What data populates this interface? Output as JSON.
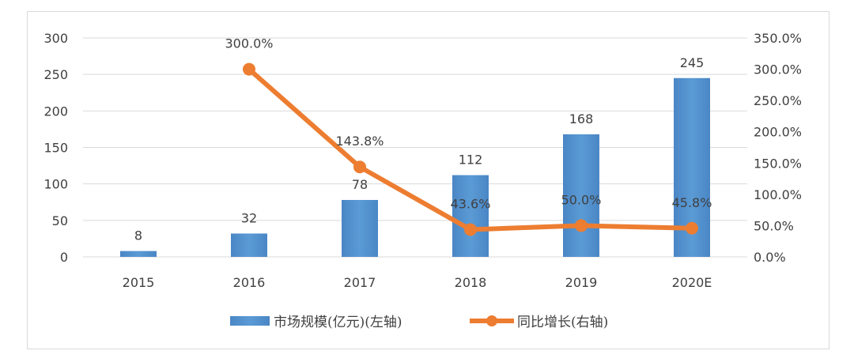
{
  "chart_data": {
    "type": "bar+line",
    "categories": [
      "2015",
      "2016",
      "2017",
      "2018",
      "2019",
      "2020E"
    ],
    "series": [
      {
        "name": "市场规模(亿元)(左轴)",
        "type": "bar",
        "axis": "left",
        "values": [
          8,
          32,
          78,
          112,
          168,
          245
        ],
        "labels": [
          "8",
          "32",
          "78",
          "112",
          "168",
          "245"
        ],
        "color": "#5b9bd5"
      },
      {
        "name": "同比增长(右轴)",
        "type": "line",
        "axis": "right",
        "values": [
          null,
          300.0,
          143.8,
          43.6,
          50.0,
          45.8
        ],
        "labels": [
          "",
          "300.0%",
          "143.8%",
          "43.6%",
          "50.0%",
          "45.8%"
        ],
        "color": "#ed7d31"
      }
    ],
    "y_left": {
      "range": [
        0,
        300
      ],
      "ticks": [
        "0",
        "50",
        "100",
        "150",
        "200",
        "250",
        "300"
      ]
    },
    "y_right": {
      "range": [
        0,
        350
      ],
      "ticks": [
        "0.0%",
        "50.0%",
        "100.0%",
        "150.0%",
        "200.0%",
        "250.0%",
        "300.0%",
        "350.0%"
      ]
    },
    "grid": true,
    "legend_position": "bottom"
  }
}
